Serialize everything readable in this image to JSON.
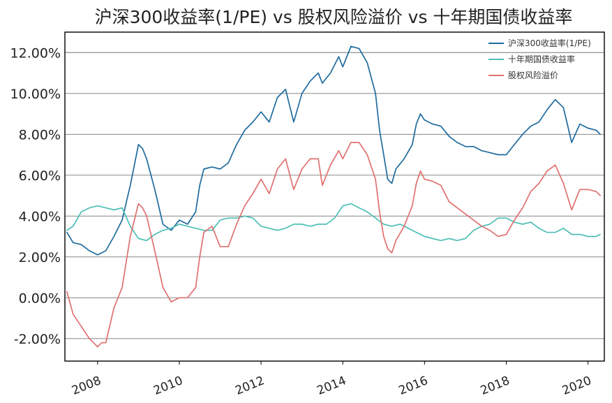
{
  "chart_data": {
    "type": "line",
    "title": "沪深300收益率(1/PE) vs 股权风险溢价 vs 十年期国债收益率",
    "xlabel": "",
    "ylabel": "",
    "x_tick_labels": [
      "2008",
      "2010",
      "2012",
      "2014",
      "2016",
      "2018",
      "2020"
    ],
    "y_tick_labels": [
      "-2.00%",
      "0.00%",
      "2.00%",
      "4.00%",
      "6.00%",
      "8.00%",
      "10.00%",
      "12.00%"
    ],
    "xlim": [
      2007.2,
      2020.4
    ],
    "ylim": [
      -3.1,
      13.0
    ],
    "grid": "horizontal",
    "legend_position": "top-right",
    "series": [
      {
        "name": "沪深300收益率(1/PE)",
        "color": "#1f6b9e",
        "x": [
          2007.25,
          2007.4,
          2007.6,
          2007.8,
          2008.0,
          2008.2,
          2008.4,
          2008.6,
          2008.8,
          2008.9,
          2009.0,
          2009.1,
          2009.2,
          2009.4,
          2009.6,
          2009.8,
          2010.0,
          2010.2,
          2010.4,
          2010.5,
          2010.6,
          2010.8,
          2011.0,
          2011.2,
          2011.4,
          2011.6,
          2011.8,
          2012.0,
          2012.2,
          2012.4,
          2012.6,
          2012.8,
          2013.0,
          2013.2,
          2013.4,
          2013.5,
          2013.7,
          2013.9,
          2014.0,
          2014.2,
          2014.4,
          2014.6,
          2014.8,
          2014.9,
          2015.0,
          2015.1,
          2015.2,
          2015.3,
          2015.5,
          2015.7,
          2015.8,
          2015.9,
          2016.0,
          2016.2,
          2016.4,
          2016.6,
          2016.8,
          2017.0,
          2017.2,
          2017.4,
          2017.6,
          2017.8,
          2018.0,
          2018.2,
          2018.4,
          2018.6,
          2018.8,
          2019.0,
          2019.2,
          2019.4,
          2019.6,
          2019.8,
          2020.0,
          2020.2,
          2020.3
        ],
        "y": [
          3.2,
          2.7,
          2.6,
          2.3,
          2.1,
          2.3,
          3.0,
          3.8,
          5.5,
          6.5,
          7.5,
          7.3,
          6.8,
          5.3,
          3.6,
          3.3,
          3.8,
          3.6,
          4.2,
          5.5,
          6.3,
          6.4,
          6.3,
          6.6,
          7.5,
          8.2,
          8.6,
          9.1,
          8.6,
          9.8,
          10.2,
          8.6,
          10.0,
          10.6,
          11.0,
          10.5,
          11.0,
          11.8,
          11.3,
          12.3,
          12.2,
          11.5,
          10.0,
          8.2,
          7.0,
          5.8,
          5.6,
          6.3,
          6.8,
          7.5,
          8.5,
          9.0,
          8.7,
          8.5,
          8.4,
          7.9,
          7.6,
          7.4,
          7.4,
          7.2,
          7.1,
          7.0,
          7.0,
          7.5,
          8.0,
          8.4,
          8.6,
          9.2,
          9.7,
          9.3,
          7.6,
          8.5,
          8.3,
          8.2,
          8.0
        ]
      },
      {
        "name": "十年期国债收益率",
        "color": "#4dbfb5",
        "x": [
          2007.25,
          2007.4,
          2007.6,
          2007.8,
          2008.0,
          2008.2,
          2008.4,
          2008.6,
          2008.8,
          2009.0,
          2009.2,
          2009.4,
          2009.6,
          2009.8,
          2010.0,
          2010.2,
          2010.4,
          2010.6,
          2010.8,
          2011.0,
          2011.2,
          2011.4,
          2011.6,
          2011.8,
          2012.0,
          2012.2,
          2012.4,
          2012.6,
          2012.8,
          2013.0,
          2013.2,
          2013.4,
          2013.6,
          2013.8,
          2014.0,
          2014.2,
          2014.4,
          2014.6,
          2014.8,
          2015.0,
          2015.2,
          2015.4,
          2015.6,
          2015.8,
          2016.0,
          2016.2,
          2016.4,
          2016.6,
          2016.8,
          2017.0,
          2017.2,
          2017.4,
          2017.6,
          2017.8,
          2018.0,
          2018.2,
          2018.4,
          2018.6,
          2018.8,
          2019.0,
          2019.2,
          2019.4,
          2019.6,
          2019.8,
          2020.0,
          2020.2,
          2020.3
        ],
        "y": [
          3.3,
          3.5,
          4.2,
          4.4,
          4.5,
          4.4,
          4.3,
          4.4,
          3.5,
          2.9,
          2.8,
          3.1,
          3.3,
          3.4,
          3.6,
          3.5,
          3.4,
          3.3,
          3.3,
          3.8,
          3.9,
          3.9,
          4.0,
          3.9,
          3.5,
          3.4,
          3.3,
          3.4,
          3.6,
          3.6,
          3.5,
          3.6,
          3.6,
          3.9,
          4.5,
          4.6,
          4.4,
          4.2,
          3.9,
          3.6,
          3.5,
          3.6,
          3.4,
          3.2,
          3.0,
          2.9,
          2.8,
          2.9,
          2.8,
          2.9,
          3.3,
          3.5,
          3.6,
          3.9,
          3.9,
          3.7,
          3.6,
          3.7,
          3.4,
          3.2,
          3.2,
          3.4,
          3.1,
          3.1,
          3.0,
          3.0,
          3.1
        ]
      },
      {
        "name": "股权风险溢价",
        "color": "#e07070",
        "x": [
          2007.25,
          2007.4,
          2007.6,
          2007.8,
          2008.0,
          2008.1,
          2008.2,
          2008.4,
          2008.6,
          2008.8,
          2009.0,
          2009.1,
          2009.2,
          2009.4,
          2009.6,
          2009.8,
          2010.0,
          2010.2,
          2010.4,
          2010.5,
          2010.6,
          2010.8,
          2011.0,
          2011.2,
          2011.4,
          2011.6,
          2011.8,
          2012.0,
          2012.2,
          2012.4,
          2012.6,
          2012.8,
          2013.0,
          2013.2,
          2013.4,
          2013.5,
          2013.7,
          2013.9,
          2014.0,
          2014.2,
          2014.4,
          2014.6,
          2014.8,
          2014.9,
          2015.0,
          2015.1,
          2015.2,
          2015.3,
          2015.5,
          2015.7,
          2015.8,
          2015.9,
          2016.0,
          2016.2,
          2016.4,
          2016.6,
          2016.8,
          2017.0,
          2017.2,
          2017.4,
          2017.6,
          2017.8,
          2018.0,
          2018.2,
          2018.4,
          2018.6,
          2018.8,
          2019.0,
          2019.2,
          2019.4,
          2019.6,
          2019.8,
          2020.0,
          2020.2,
          2020.3
        ],
        "y": [
          0.3,
          -0.8,
          -1.4,
          -2.0,
          -2.4,
          -2.2,
          -2.2,
          -0.5,
          0.5,
          3.0,
          4.6,
          4.4,
          4.0,
          2.3,
          0.5,
          -0.2,
          0.0,
          0.0,
          0.5,
          2.0,
          3.2,
          3.5,
          2.5,
          2.5,
          3.6,
          4.5,
          5.1,
          5.8,
          5.1,
          6.3,
          6.8,
          5.3,
          6.3,
          6.8,
          6.8,
          5.5,
          6.5,
          7.2,
          6.8,
          7.6,
          7.6,
          7.0,
          5.8,
          4.2,
          3.0,
          2.4,
          2.2,
          2.8,
          3.5,
          4.5,
          5.6,
          6.2,
          5.8,
          5.7,
          5.5,
          4.7,
          4.4,
          4.1,
          3.8,
          3.5,
          3.3,
          3.0,
          3.1,
          3.8,
          4.4,
          5.2,
          5.6,
          6.2,
          6.5,
          5.6,
          4.3,
          5.3,
          5.3,
          5.2,
          5.0
        ]
      }
    ]
  }
}
